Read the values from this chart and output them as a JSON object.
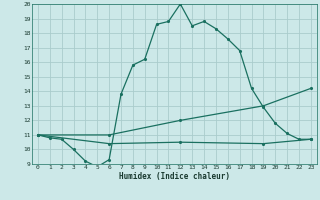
{
  "title": "",
  "xlabel": "Humidex (Indice chaleur)",
  "bg_color": "#cce8e8",
  "grid_color": "#aacccc",
  "line_color": "#1a7060",
  "xlim": [
    -0.5,
    23.5
  ],
  "ylim": [
    9,
    20
  ],
  "xticks": [
    0,
    1,
    2,
    3,
    4,
    5,
    6,
    7,
    8,
    9,
    10,
    11,
    12,
    13,
    14,
    15,
    16,
    17,
    18,
    19,
    20,
    21,
    22,
    23
  ],
  "yticks": [
    9,
    10,
    11,
    12,
    13,
    14,
    15,
    16,
    17,
    18,
    19,
    20
  ],
  "line1_x": [
    0,
    1,
    2,
    3,
    4,
    5,
    6,
    7,
    8,
    9,
    10,
    11,
    12,
    13,
    14,
    15,
    16,
    17,
    18,
    19,
    20,
    21,
    22,
    23
  ],
  "line1_y": [
    11,
    10.8,
    10.7,
    10.0,
    9.2,
    8.8,
    9.3,
    13.8,
    15.8,
    16.2,
    18.6,
    18.8,
    20.0,
    18.5,
    18.8,
    18.3,
    17.6,
    16.8,
    14.2,
    12.9,
    11.8,
    11.1,
    10.7,
    10.7
  ],
  "line2_x": [
    0,
    6,
    12,
    19,
    23
  ],
  "line2_y": [
    11,
    11.0,
    12.0,
    13.0,
    14.2
  ],
  "line3_x": [
    0,
    6,
    12,
    19,
    23
  ],
  "line3_y": [
    11,
    10.4,
    10.5,
    10.4,
    10.7
  ]
}
